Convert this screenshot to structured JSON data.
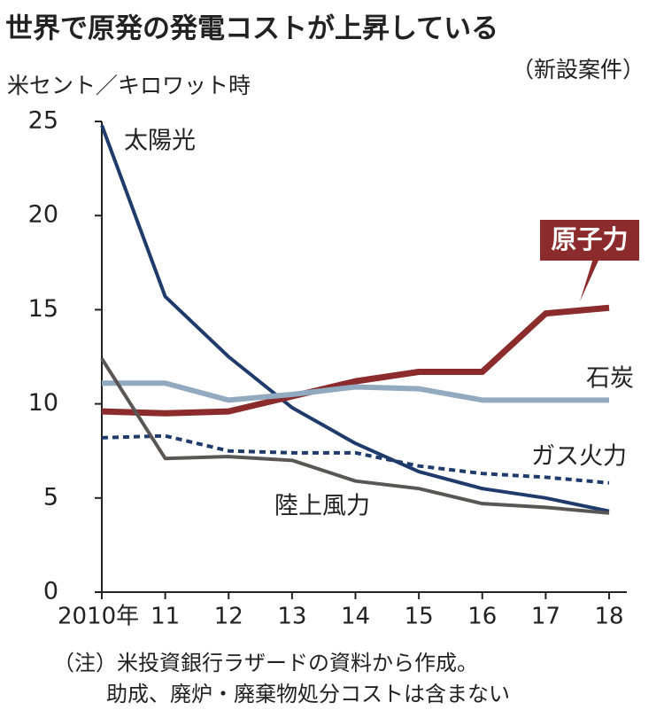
{
  "chart_data": {
    "type": "line",
    "title": "世界で原発の発電コストが上昇している",
    "subtitle": "（新設案件）",
    "y_axis_label": "米セント／キロワット時",
    "categories": [
      "2010年",
      "11",
      "12",
      "13",
      "14",
      "15",
      "16",
      "17",
      "18"
    ],
    "series": [
      {
        "name": "太陽光",
        "color": "#1f3b6b",
        "values": [
          24.8,
          15.7,
          12.5,
          9.8,
          7.9,
          6.4,
          5.5,
          5.0,
          4.3
        ]
      },
      {
        "name": "原子力",
        "color": "#8b2b2b",
        "values": [
          9.6,
          9.5,
          9.6,
          10.4,
          11.2,
          11.7,
          11.7,
          14.8,
          15.1
        ]
      },
      {
        "name": "石炭",
        "color": "#91aac0",
        "values": [
          11.1,
          11.1,
          10.2,
          10.5,
          10.9,
          10.8,
          10.2,
          10.2,
          10.2
        ]
      },
      {
        "name": "ガス火力",
        "color": "#1f3b6b",
        "dashed": true,
        "values": [
          8.2,
          8.3,
          7.5,
          7.4,
          7.4,
          6.7,
          6.3,
          6.1,
          5.8
        ]
      },
      {
        "name": "陸上風力",
        "color": "#5b5656",
        "values": [
          12.4,
          7.1,
          7.2,
          7.0,
          5.9,
          5.5,
          4.7,
          4.5,
          4.2
        ]
      }
    ],
    "ylim": [
      0,
      25
    ],
    "yticks": [
      0,
      5,
      10,
      15,
      20,
      25
    ],
    "grid": false,
    "notes": [
      "（注）米投資銀行ラザードの資料から作成。",
      "助成、廃炉・廃棄物処分コストは含まない"
    ]
  }
}
